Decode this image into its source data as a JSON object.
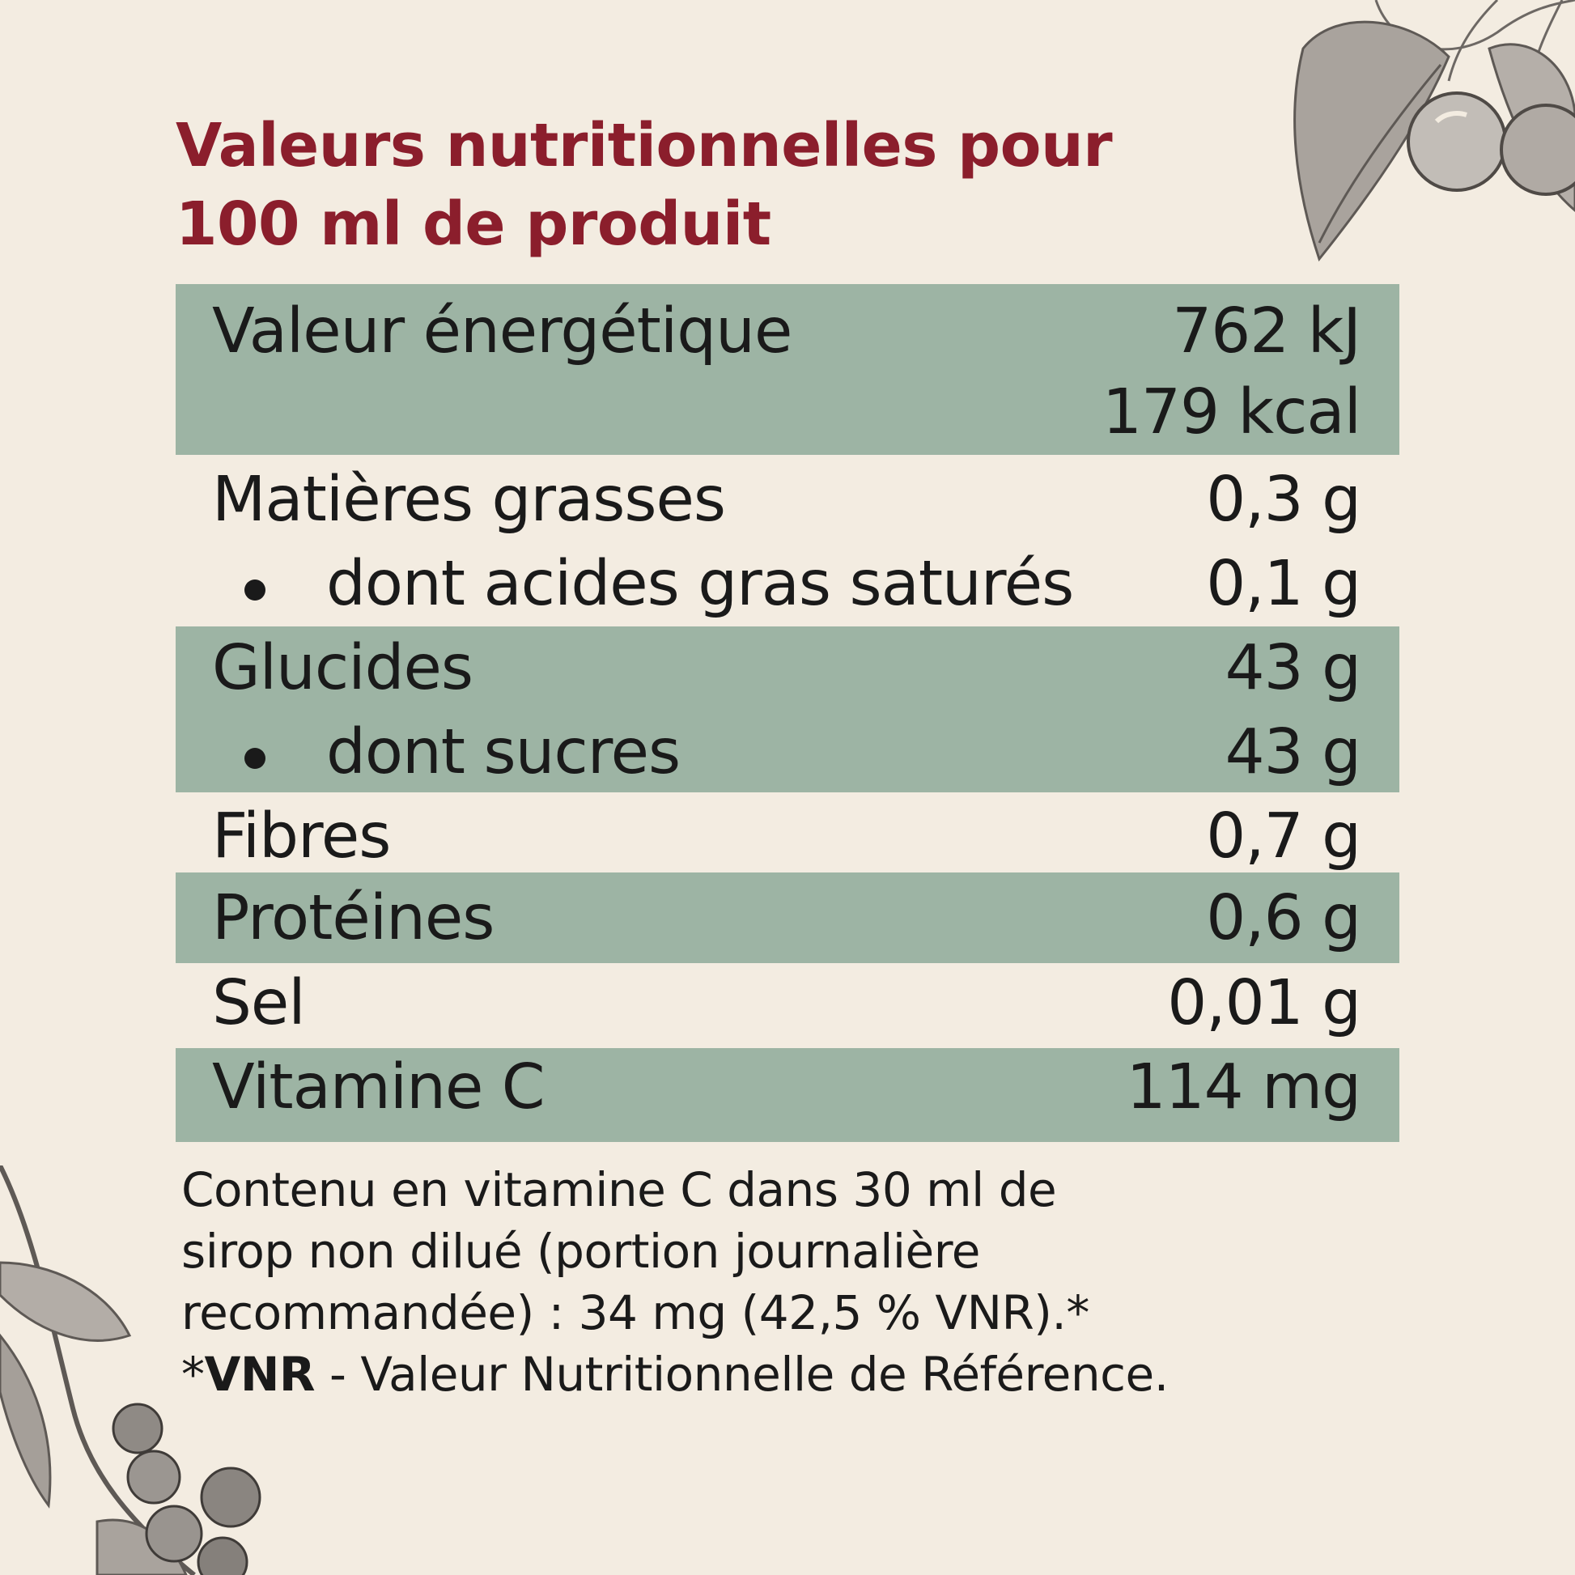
{
  "title": {
    "line1": "Valeurs nutritionnelles pour",
    "line2": "100 ml de produit"
  },
  "rows": [
    {
      "label": "Valeur énergétique",
      "value": "762 kJ",
      "value2": "179 kcal"
    },
    {
      "label": "Matières grasses",
      "value": "0,3 g"
    },
    {
      "label": "dont acides gras saturés",
      "value": "0,1 g"
    },
    {
      "label": "Glucides",
      "value": "43 g"
    },
    {
      "label": "dont sucres",
      "value": "43 g"
    },
    {
      "label": "Fibres",
      "value": "0,7 g"
    },
    {
      "label": "Protéines",
      "value": "0,6 g"
    },
    {
      "label": "Sel",
      "value": "0,01 g"
    },
    {
      "label": "Vitamine C",
      "value": "114 mg"
    }
  ],
  "footnote": {
    "line1": "Contenu en vitamine C dans 30 ml de",
    "line2": "sirop non dilué (portion journalière",
    "line3": "recommandée) : 34 mg (42,5 % VNR).*",
    "vnr_prefix": "*",
    "vnr_abbr": "VNR",
    "vnr_def": " - Valeur Nutritionnelle de Référence."
  },
  "colors": {
    "title": "#8b1e2c",
    "band": "#9db4a4",
    "background": "#f3ece1"
  },
  "decorations": [
    "cherry-branch-illustration-top-right",
    "cherry-branch-illustration-bottom-left"
  ]
}
